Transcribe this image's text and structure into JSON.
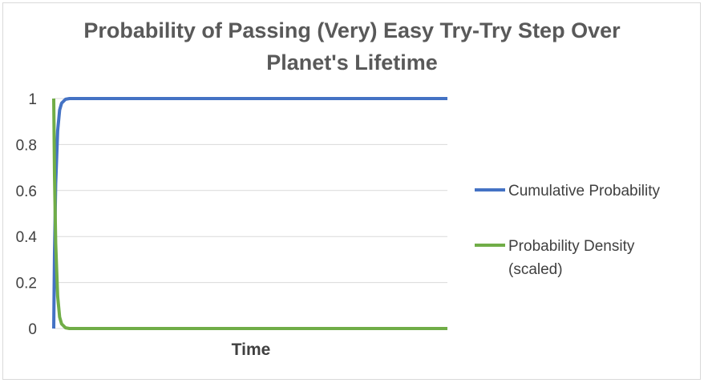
{
  "chart_data": {
    "type": "line",
    "title_lines": [
      "Probability of Passing (Very) Easy Try-Try Step Over",
      "Planet's Lifetime"
    ],
    "xlabel": "Time",
    "ylabel": "",
    "ylim": [
      0,
      1
    ],
    "yticks": [
      "0",
      "0.2",
      "0.4",
      "0.6",
      "0.8",
      "1"
    ],
    "grid": true,
    "legend_position": "right",
    "x": [
      0,
      0.002,
      0.005,
      0.01,
      0.015,
      0.02,
      0.03,
      0.04,
      0.06,
      0.1,
      0.2,
      0.4,
      0.6,
      0.8,
      1.0
    ],
    "series": [
      {
        "name": "Cumulative Probability",
        "color": "#4472c4",
        "values": [
          0,
          0.33,
          0.63,
          0.86,
          0.95,
          0.98,
          0.997,
          1.0,
          1.0,
          1.0,
          1.0,
          1.0,
          1.0,
          1.0,
          1.0
        ]
      },
      {
        "name": "Probability Density (scaled)",
        "legend_lines": [
          "Probability Density",
          "(scaled)"
        ],
        "color": "#70ad47",
        "values": [
          1.0,
          0.67,
          0.37,
          0.14,
          0.05,
          0.02,
          0.003,
          0.0,
          0.0,
          0.0,
          0.0,
          0.0,
          0.0,
          0.0,
          0.0
        ]
      }
    ]
  }
}
